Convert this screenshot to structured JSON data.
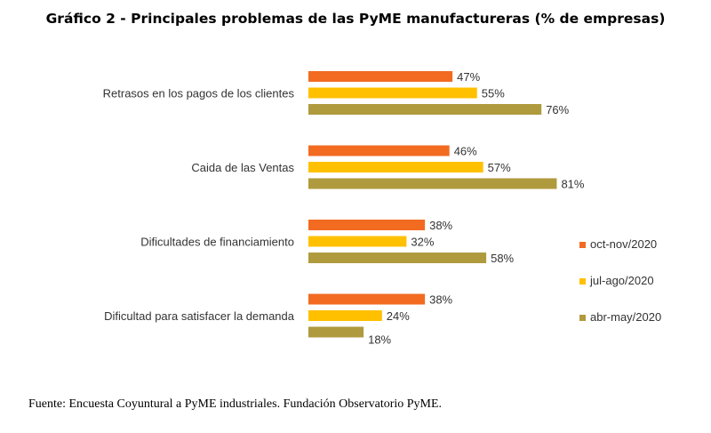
{
  "chart_data": {
    "type": "bar",
    "orientation": "horizontal",
    "title": "Gráfico 2 - Principales problemas de las PyME manufactureras (% de empresas)",
    "categories": [
      "Retrasos en los pagos de los clientes",
      "Caida de las Ventas",
      "Dificultades de financiamiento",
      "Dificultad para satisfacer la demanda"
    ],
    "series": [
      {
        "name": "oct-nov/2020",
        "color": "#F26B21",
        "values": [
          47,
          46,
          38,
          38
        ]
      },
      {
        "name": "jul-ago/2020",
        "color": "#FFC000",
        "values": [
          55,
          57,
          32,
          24
        ]
      },
      {
        "name": "abr-may/2020",
        "color": "#B09A3E",
        "values": [
          76,
          81,
          58,
          18
        ]
      }
    ],
    "value_suffix": "%",
    "xlim": [
      0,
      100
    ],
    "grid": false,
    "legend_position": "right"
  },
  "source": "Fuente: Encuesta Coyuntural a PyME industriales. Fundación Observatorio PyME."
}
